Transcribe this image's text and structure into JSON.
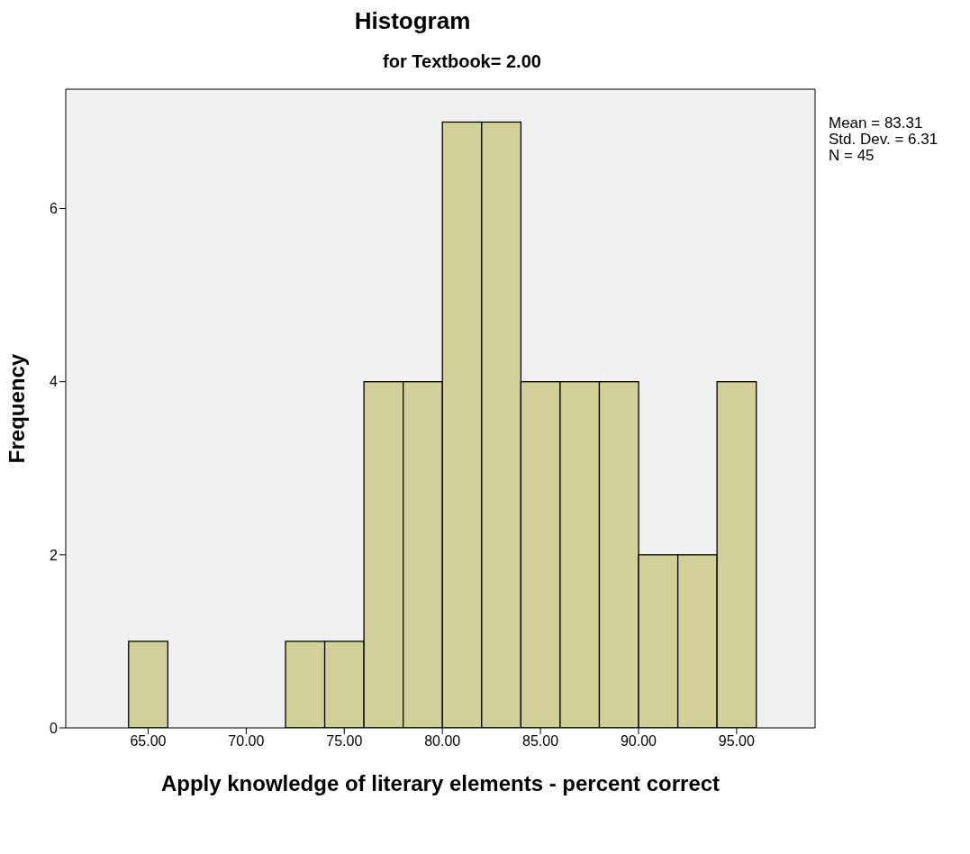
{
  "chart_data": {
    "type": "histogram",
    "title": "Histogram",
    "subtitle": "for Textbook= 2.00",
    "xlabel": "Apply knowledge of literary elements - percent correct",
    "ylabel": "Frequency",
    "bins": [
      64,
      66,
      68,
      70,
      72,
      74,
      76,
      78,
      80,
      82,
      84,
      86,
      88,
      90,
      92,
      94,
      96
    ],
    "values": [
      1,
      0,
      0,
      0,
      1,
      1,
      4,
      4,
      7,
      7,
      4,
      4,
      4,
      2,
      2,
      4
    ],
    "color": "#d3cf98",
    "xlim": [
      60.8,
      99
    ],
    "xticks": [
      {
        "value": 65,
        "label": "65.00"
      },
      {
        "value": 70,
        "label": "70.00"
      },
      {
        "value": 75,
        "label": "75.00"
      },
      {
        "value": 80,
        "label": "80.00"
      },
      {
        "value": 85,
        "label": "85.00"
      },
      {
        "value": 90,
        "label": "90.00"
      },
      {
        "value": 95,
        "label": "95.00"
      }
    ],
    "ylim": [
      0,
      7.38
    ],
    "yticks": [
      0,
      2,
      4,
      6
    ],
    "grid": false,
    "annotations": [
      "Mean = 83.31",
      "Std. Dev. = 6.31",
      "N = 45"
    ]
  }
}
